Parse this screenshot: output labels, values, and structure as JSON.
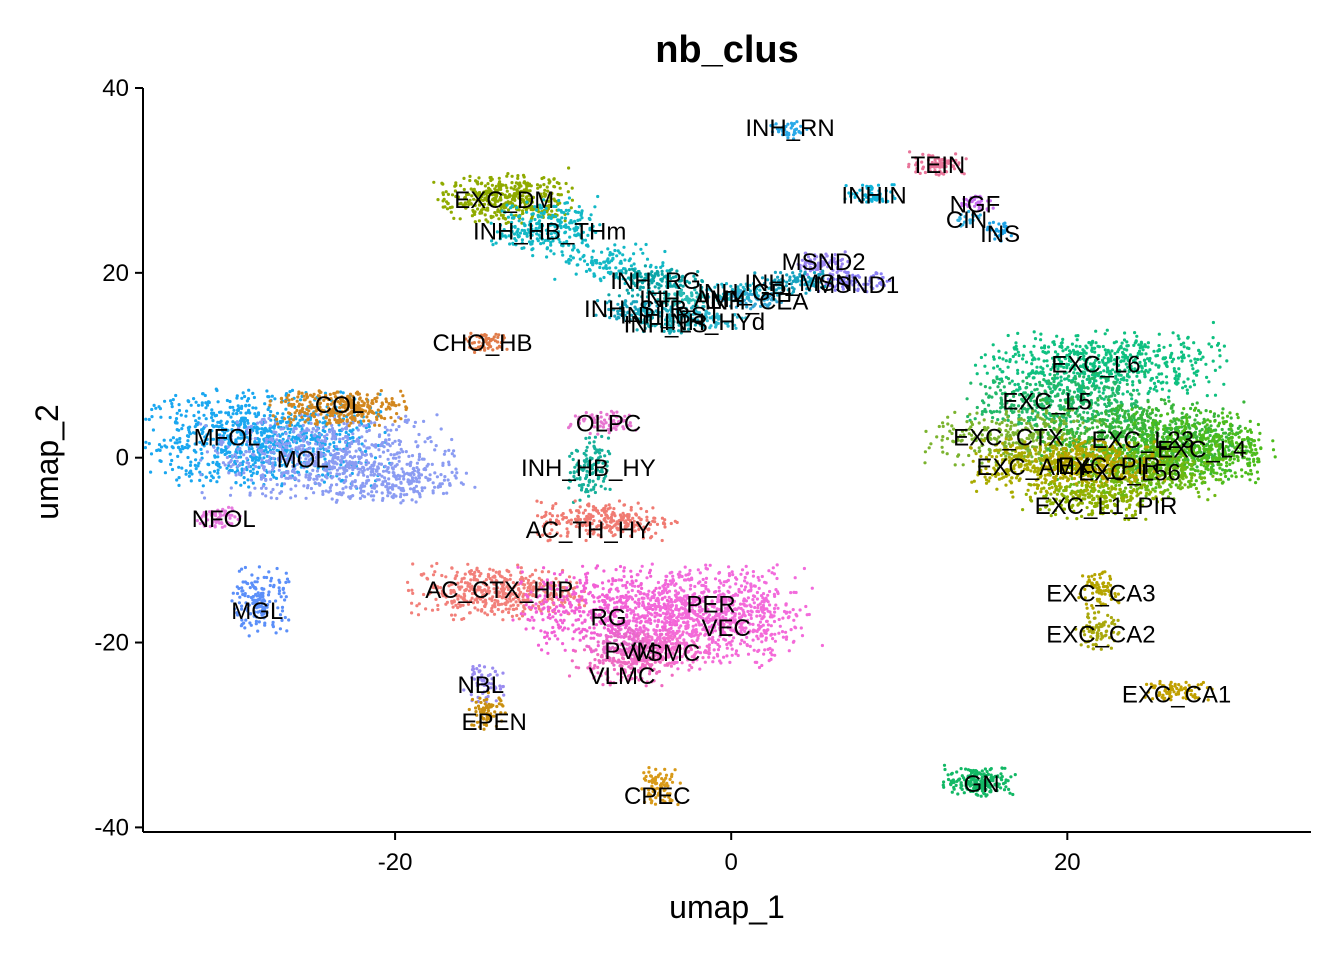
{
  "chart_data": {
    "type": "scatter",
    "title": "nb_clus",
    "xlabel": "umap_1",
    "ylabel": "umap_2",
    "xlim": [
      -35,
      34.5
    ],
    "ylim": [
      -40.5,
      40
    ],
    "grid": false,
    "legend": "none",
    "xticks": [
      {
        "value": -20,
        "label": "-20"
      },
      {
        "value": 0,
        "label": "0"
      },
      {
        "value": 20,
        "label": "20"
      }
    ],
    "yticks": [
      {
        "value": 40,
        "label": "40"
      },
      {
        "value": 20,
        "label": "20"
      },
      {
        "value": 0,
        "label": "0"
      },
      {
        "value": -20,
        "label": "-20"
      },
      {
        "value": -40,
        "label": "-40"
      }
    ],
    "clusters": [
      {
        "label": "MFOL",
        "x": -30.0,
        "y": 2.3,
        "color": "#1aa7f0",
        "blobs": [
          {
            "x": -28,
            "y": 2,
            "sx": 3.5,
            "sy": 2.5,
            "n": 900
          }
        ]
      },
      {
        "label": "MOL",
        "x": -25.5,
        "y": -0.1,
        "color": "#8b9cf2",
        "blobs": [
          {
            "x": -24,
            "y": 0,
            "sx": 3.5,
            "sy": 2.2,
            "n": 650
          },
          {
            "x": -20,
            "y": -2.5,
            "sx": 2.2,
            "sy": 1.2,
            "n": 200
          }
        ]
      },
      {
        "label": "COL",
        "x": -23.3,
        "y": 5.8,
        "color": "#d2871f",
        "blobs": [
          {
            "x": -23.5,
            "y": 5.5,
            "sx": 2.0,
            "sy": 1.0,
            "n": 300
          }
        ]
      },
      {
        "label": "NFOL",
        "x": -30.2,
        "y": -6.5,
        "color": "#e67bdf",
        "blobs": [
          {
            "x": -30.5,
            "y": -6.5,
            "sx": 0.6,
            "sy": 0.6,
            "n": 60
          }
        ]
      },
      {
        "label": "MGL",
        "x": -28.2,
        "y": -16.5,
        "color": "#5b8ff9",
        "blobs": [
          {
            "x": -28,
            "y": -15.5,
            "sx": 0.8,
            "sy": 1.8,
            "n": 160
          }
        ]
      },
      {
        "label": "EXC_DM",
        "x": -13.5,
        "y": 28.0,
        "color": "#8faa00",
        "blobs": [
          {
            "x": -13.5,
            "y": 28,
            "sx": 2.0,
            "sy": 1.3,
            "n": 400
          }
        ]
      },
      {
        "label": "INH_HB_THm",
        "x": -10.8,
        "y": 24.6,
        "color": "#12b8c6",
        "blobs": [
          {
            "x": -11,
            "y": 25,
            "sx": 1.5,
            "sy": 1.5,
            "n": 250
          },
          {
            "x": -7,
            "y": 21,
            "sx": 1.6,
            "sy": 1.0,
            "n": 120
          }
        ]
      },
      {
        "label": "CHO_HB",
        "x": -14.8,
        "y": 12.5,
        "color": "#e07c4a",
        "blobs": [
          {
            "x": -14.5,
            "y": 12.5,
            "sx": 0.6,
            "sy": 0.6,
            "n": 60
          }
        ]
      },
      {
        "label": "OLPC",
        "x": -7.3,
        "y": 3.8,
        "color": "#e676d0",
        "blobs": [
          {
            "x": -7.5,
            "y": 3.8,
            "sx": 1.0,
            "sy": 0.6,
            "n": 80
          }
        ]
      },
      {
        "label": "INH_HB_HY",
        "x": -8.5,
        "y": -1.0,
        "color": "#16b09a",
        "blobs": [
          {
            "x": -8.5,
            "y": -1.5,
            "sx": 0.6,
            "sy": 1.8,
            "n": 120
          }
        ]
      },
      {
        "label": "AC_TH_HY",
        "x": -8.5,
        "y": -7.7,
        "color": "#f07b72",
        "blobs": [
          {
            "x": -7.5,
            "y": -6.8,
            "sx": 2.0,
            "sy": 1.0,
            "n": 260
          }
        ]
      },
      {
        "label": "AC_CTX_HIP",
        "x": -13.8,
        "y": -14.2,
        "color": "#f2807a",
        "blobs": [
          {
            "x": -14,
            "y": -14.5,
            "sx": 2.5,
            "sy": 1.4,
            "n": 450
          }
        ]
      },
      {
        "label": "RG",
        "x": -7.3,
        "y": -17.2,
        "color": "#f25fd5",
        "blobs": [
          {
            "x": -7.5,
            "y": -16.5,
            "sx": 2.5,
            "sy": 2.2,
            "n": 500
          }
        ]
      },
      {
        "label": "PER",
        "x": -1.2,
        "y": -15.8,
        "color": "#f26bdc",
        "blobs": [
          {
            "x": -1.5,
            "y": -15.8,
            "sx": 3.0,
            "sy": 2.0,
            "n": 500
          }
        ]
      },
      {
        "label": "VEC",
        "x": -0.3,
        "y": -18.3,
        "color": "#f46ad8",
        "blobs": [
          {
            "x": -1,
            "y": -18.5,
            "sx": 2.5,
            "sy": 2.0,
            "n": 400
          }
        ]
      },
      {
        "label": "PVM",
        "x": -6.0,
        "y": -20.8,
        "color": "#e86ac8",
        "blobs": [
          {
            "x": -6,
            "y": -20.5,
            "sx": 1.2,
            "sy": 1.0,
            "n": 150
          }
        ]
      },
      {
        "label": "VSMC",
        "x": -3.9,
        "y": -21.0,
        "color": "#f570cd",
        "blobs": [
          {
            "x": -3.8,
            "y": -20.8,
            "sx": 1.2,
            "sy": 1.0,
            "n": 150
          }
        ]
      },
      {
        "label": "VLMC",
        "x": -6.5,
        "y": -23.5,
        "color": "#f06ac0",
        "blobs": [
          {
            "x": -6.5,
            "y": -22.5,
            "sx": 1.5,
            "sy": 1.0,
            "n": 150
          }
        ]
      },
      {
        "label": "NBL",
        "x": -14.9,
        "y": -24.5,
        "color": "#9a8cf0",
        "blobs": [
          {
            "x": -14.8,
            "y": -24.5,
            "sx": 0.6,
            "sy": 1.0,
            "n": 60
          }
        ]
      },
      {
        "label": "EPEN",
        "x": -14.1,
        "y": -28.5,
        "color": "#c98f10",
        "blobs": [
          {
            "x": -14.5,
            "y": -27.5,
            "sx": 0.5,
            "sy": 1.0,
            "n": 70
          }
        ]
      },
      {
        "label": "CPEC",
        "x": -4.4,
        "y": -36.5,
        "color": "#d89a1a",
        "blobs": [
          {
            "x": -4.3,
            "y": -35.5,
            "sx": 0.6,
            "sy": 1.0,
            "n": 80
          }
        ]
      },
      {
        "label": "INH_RN",
        "x": 3.5,
        "y": 35.8,
        "color": "#29a9e8",
        "blobs": [
          {
            "x": 3.5,
            "y": 35.5,
            "sx": 0.6,
            "sy": 0.5,
            "n": 40
          }
        ]
      },
      {
        "label": "TEIN",
        "x": 12.3,
        "y": 31.8,
        "color": "#e9759a",
        "blobs": [
          {
            "x": 12.3,
            "y": 31.8,
            "sx": 0.8,
            "sy": 0.6,
            "n": 80
          }
        ]
      },
      {
        "label": "INHIN",
        "x": 8.5,
        "y": 28.5,
        "color": "#10b2d8",
        "blobs": [
          {
            "x": 8.5,
            "y": 28.5,
            "sx": 0.8,
            "sy": 0.6,
            "n": 60
          }
        ]
      },
      {
        "label": "NGF",
        "x": 14.5,
        "y": 27.5,
        "color": "#c86ff0",
        "blobs": [
          {
            "x": 14.5,
            "y": 27.5,
            "sx": 0.5,
            "sy": 0.5,
            "n": 40
          }
        ]
      },
      {
        "label": "CIN",
        "x": 14.0,
        "y": 25.8,
        "color": "#2fb0e0",
        "blobs": [
          {
            "x": 14.2,
            "y": 25.8,
            "sx": 0.4,
            "sy": 0.4,
            "n": 20
          }
        ]
      },
      {
        "label": "INS",
        "x": 16.0,
        "y": 24.3,
        "color": "#1fa3e6",
        "blobs": [
          {
            "x": 16,
            "y": 24.5,
            "sx": 0.4,
            "sy": 0.5,
            "n": 30
          }
        ]
      },
      {
        "label": "MSND2",
        "x": 5.5,
        "y": 21.3,
        "color": "#9a85f0",
        "blobs": [
          {
            "x": 5.3,
            "y": 21,
            "sx": 0.8,
            "sy": 0.6,
            "n": 80
          }
        ]
      },
      {
        "label": "MSND1",
        "x": 7.5,
        "y": 18.8,
        "color": "#8b80f5",
        "blobs": [
          {
            "x": 7.3,
            "y": 19,
            "sx": 1.0,
            "sy": 0.5,
            "n": 80
          }
        ]
      },
      {
        "label": "INH_MSN",
        "x": 4.0,
        "y": 19.0,
        "color": "#16a2bf",
        "blobs": [
          {
            "x": 4,
            "y": 19,
            "sx": 1.2,
            "sy": 0.6,
            "n": 90
          }
        ]
      },
      {
        "label": "INH_RG",
        "x": -4.5,
        "y": 19.2,
        "color": "#0ea6a8",
        "blobs": [
          {
            "x": -4.5,
            "y": 19,
            "sx": 1.3,
            "sy": 0.8,
            "n": 140
          }
        ]
      },
      {
        "label": "INH_GPi",
        "x": 0.8,
        "y": 18.0,
        "color": "#22b6cc",
        "blobs": [
          {
            "x": 1,
            "y": 18,
            "sx": 1.2,
            "sy": 0.5,
            "n": 80
          }
        ]
      },
      {
        "label": "INH_AMY",
        "x": -2.3,
        "y": 17.3,
        "color": "#2abcb5",
        "blobs": [
          {
            "x": -2.3,
            "y": 17.3,
            "sx": 1.2,
            "sy": 0.5,
            "n": 80
          }
        ]
      },
      {
        "label": "INH_CEA",
        "x": 1.5,
        "y": 17.0,
        "color": "#35a7d6",
        "blobs": [
          {
            "x": 1.5,
            "y": 17,
            "sx": 1.0,
            "sy": 0.5,
            "n": 60
          }
        ]
      },
      {
        "label": "INH_STR",
        "x": -5.7,
        "y": 16.2,
        "color": "#19a4bd",
        "blobs": [
          {
            "x": -5.7,
            "y": 16,
            "sx": 1.2,
            "sy": 0.6,
            "n": 80
          }
        ]
      },
      {
        "label": "INH_BST",
        "x": -3.6,
        "y": 15.5,
        "color": "#20b0c0",
        "blobs": [
          {
            "x": -3.6,
            "y": 15.5,
            "sx": 1.0,
            "sy": 0.5,
            "n": 60
          }
        ]
      },
      {
        "label": "INH_HYd",
        "x": -1.0,
        "y": 14.8,
        "color": "#2cb8d0",
        "blobs": [
          {
            "x": -1,
            "y": 15,
            "sx": 1.0,
            "sy": 0.5,
            "n": 60
          }
        ]
      },
      {
        "label": "INH_LS",
        "x": -3.9,
        "y": 14.5,
        "color": "#17aab5",
        "blobs": [
          {
            "x": -4,
            "y": 14.5,
            "sx": 0.9,
            "sy": 0.5,
            "n": 50
          }
        ]
      },
      {
        "label": "EXC_L6",
        "x": 21.7,
        "y": 10.2,
        "color": "#0fc080",
        "blobs": [
          {
            "x": 22,
            "y": 10,
            "sx": 3.5,
            "sy": 1.8,
            "n": 600
          }
        ]
      },
      {
        "label": "EXC_L5",
        "x": 18.8,
        "y": 6.2,
        "color": "#22b86a",
        "blobs": [
          {
            "x": 19.5,
            "y": 6,
            "sx": 2.5,
            "sy": 1.5,
            "n": 400
          }
        ]
      },
      {
        "label": "EXC_CTX",
        "x": 16.5,
        "y": 2.3,
        "color": "#7bb32e",
        "blobs": [
          {
            "x": 17,
            "y": 2,
            "sx": 2.5,
            "sy": 1.5,
            "n": 300
          }
        ]
      },
      {
        "label": "EXC_L23",
        "x": 24.5,
        "y": 2.0,
        "color": "#38b53a",
        "blobs": [
          {
            "x": 24.5,
            "y": 2,
            "sx": 3.0,
            "sy": 2.0,
            "n": 800
          }
        ]
      },
      {
        "label": "EXC_L4",
        "x": 28.0,
        "y": 1.0,
        "color": "#4cbc1c",
        "blobs": [
          {
            "x": 28,
            "y": 1,
            "sx": 2.0,
            "sy": 2.0,
            "n": 450
          }
        ]
      },
      {
        "label": "EXC_L56",
        "x": 23.7,
        "y": -1.5,
        "color": "#6eb813",
        "blobs": [
          {
            "x": 24,
            "y": -1.5,
            "sx": 2.5,
            "sy": 1.5,
            "n": 500
          }
        ]
      },
      {
        "label": "EXC_AMY",
        "x": 18.0,
        "y": -0.9,
        "color": "#a9ab00",
        "blobs": [
          {
            "x": 18.5,
            "y": -1,
            "sx": 2.0,
            "sy": 1.5,
            "n": 350
          }
        ]
      },
      {
        "label": "EXC_PIR",
        "x": 22.5,
        "y": -0.8,
        "color": "#b8a300",
        "blobs": [
          {
            "x": 22,
            "y": -0.5,
            "sx": 1.8,
            "sy": 1.2,
            "n": 250
          }
        ]
      },
      {
        "label": "EXC_L1_PIR",
        "x": 22.3,
        "y": -5.1,
        "color": "#8fb000",
        "blobs": [
          {
            "x": 21.5,
            "y": -4.5,
            "sx": 2.0,
            "sy": 1.0,
            "n": 200
          }
        ]
      },
      {
        "label": "EXC_CA3",
        "x": 22.0,
        "y": -14.6,
        "color": "#b5a400",
        "blobs": [
          {
            "x": 21.8,
            "y": -14.5,
            "sx": 0.6,
            "sy": 1.0,
            "n": 80
          }
        ]
      },
      {
        "label": "EXC_CA2",
        "x": 22.0,
        "y": -19.0,
        "color": "#a9a80e",
        "blobs": [
          {
            "x": 21.8,
            "y": -18.8,
            "sx": 0.6,
            "sy": 1.0,
            "n": 80
          }
        ]
      },
      {
        "label": "EXC_CA1",
        "x": 26.5,
        "y": -25.5,
        "color": "#c1a000",
        "blobs": [
          {
            "x": 26.5,
            "y": -25.2,
            "sx": 1.0,
            "sy": 0.5,
            "n": 80
          }
        ]
      },
      {
        "label": "GN",
        "x": 14.9,
        "y": -35.2,
        "color": "#12b865",
        "blobs": [
          {
            "x": 14.8,
            "y": -35,
            "sx": 1.0,
            "sy": 0.8,
            "n": 200
          }
        ]
      }
    ]
  }
}
